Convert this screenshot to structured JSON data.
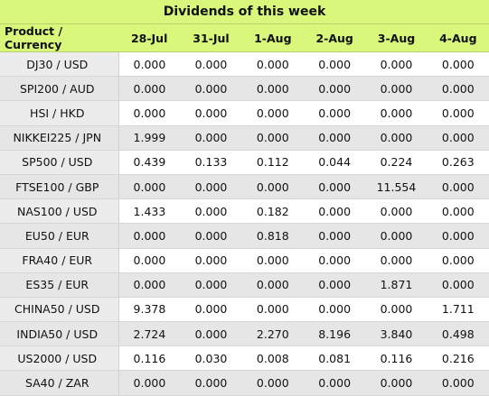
{
  "title": "Dividends of this week",
  "headers": [
    "Product / Currency",
    "28-Jul",
    "31-Jul",
    "1-Aug",
    "2-Aug",
    "3-Aug",
    "4-Aug"
  ],
  "rows": [
    {
      "product": "DJ30 / USD",
      "values": [
        "0.000",
        "0.000",
        "0.000",
        "0.000",
        "0.000",
        "0.000"
      ]
    },
    {
      "product": "SPI200 / AUD",
      "values": [
        "0.000",
        "0.000",
        "0.000",
        "0.000",
        "0.000",
        "0.000"
      ]
    },
    {
      "product": "HSI / HKD",
      "values": [
        "0.000",
        "0.000",
        "0.000",
        "0.000",
        "0.000",
        "0.000"
      ]
    },
    {
      "product": "NIKKEI225 / JPN",
      "values": [
        "1.999",
        "0.000",
        "0.000",
        "0.000",
        "0.000",
        "0.000"
      ]
    },
    {
      "product": "SP500 / USD",
      "values": [
        "0.439",
        "0.133",
        "0.112",
        "0.044",
        "0.224",
        "0.263"
      ]
    },
    {
      "product": "FTSE100 / GBP",
      "values": [
        "0.000",
        "0.000",
        "0.000",
        "0.000",
        "11.554",
        "0.000"
      ]
    },
    {
      "product": "NAS100 / USD",
      "values": [
        "1.433",
        "0.000",
        "0.182",
        "0.000",
        "0.000",
        "0.000"
      ]
    },
    {
      "product": "EU50 / EUR",
      "values": [
        "0.000",
        "0.000",
        "0.818",
        "0.000",
        "0.000",
        "0.000"
      ]
    },
    {
      "product": "FRA40 / EUR",
      "values": [
        "0.000",
        "0.000",
        "0.000",
        "0.000",
        "0.000",
        "0.000"
      ]
    },
    {
      "product": "ES35 / EUR",
      "values": [
        "0.000",
        "0.000",
        "0.000",
        "0.000",
        "1.871",
        "0.000"
      ]
    },
    {
      "product": "CHINA50 / USD",
      "values": [
        "9.378",
        "0.000",
        "0.000",
        "0.000",
        "0.000",
        "1.711"
      ]
    },
    {
      "product": "INDIA50 / USD",
      "values": [
        "2.724",
        "0.000",
        "2.270",
        "8.196",
        "3.840",
        "0.498"
      ]
    },
    {
      "product": "US2000 / USD",
      "values": [
        "0.116",
        "0.030",
        "0.008",
        "0.081",
        "0.116",
        "0.216"
      ]
    },
    {
      "product": "SA40 / ZAR",
      "values": [
        "0.000",
        "0.000",
        "0.000",
        "0.000",
        "0.000",
        "0.000"
      ]
    }
  ]
}
